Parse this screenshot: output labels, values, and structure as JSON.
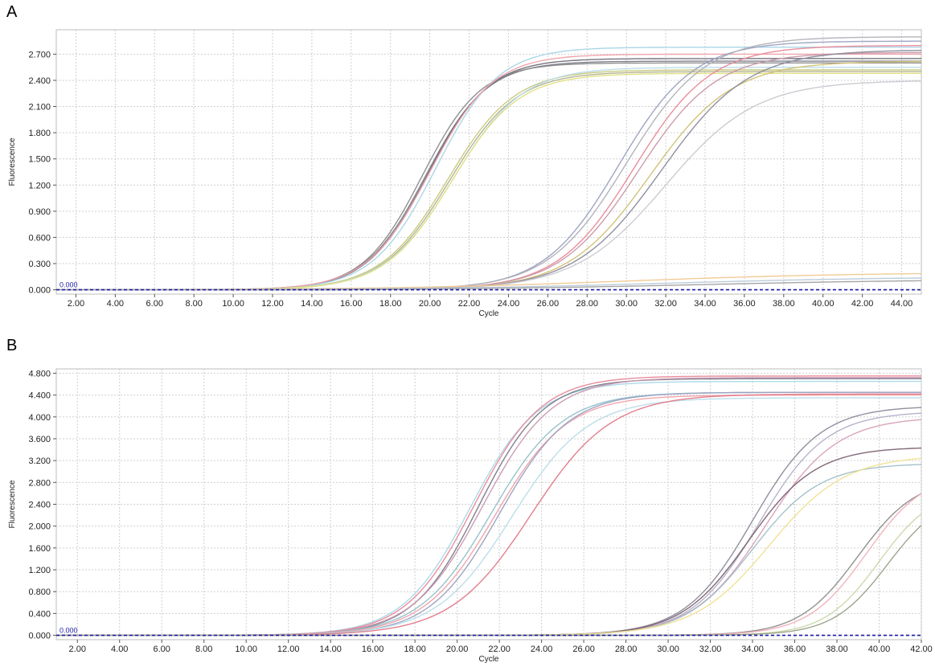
{
  "chart_data": [
    {
      "id": "A",
      "panel_label": "A",
      "type": "line",
      "xlabel": "Cycle",
      "ylabel": "Fluorescence",
      "xlim": [
        1,
        45
      ],
      "ylim": [
        -0.05,
        2.98
      ],
      "xticks": [
        "2.00",
        "4.00",
        "6.00",
        "8.00",
        "10.00",
        "12.00",
        "14.00",
        "16.00",
        "18.00",
        "20.00",
        "22.00",
        "24.00",
        "26.00",
        "28.00",
        "30.00",
        "32.00",
        "34.00",
        "36.00",
        "38.00",
        "40.00",
        "42.00",
        "44.00"
      ],
      "yticks": [
        "0.000",
        "0.300",
        "0.600",
        "0.900",
        "1.200",
        "1.500",
        "1.800",
        "2.100",
        "2.400",
        "2.700"
      ],
      "threshold": {
        "value": 0.0,
        "label": "0.000",
        "color": "#1a1aa6"
      },
      "grid": true,
      "legend": "none",
      "series": [
        {
          "color": "#7a7a8a",
          "plateau": 2.62,
          "midpoint": 19.8,
          "slope": 1.55
        },
        {
          "color": "#8a8a8a",
          "plateau": 2.6,
          "midpoint": 19.6,
          "slope": 1.5
        },
        {
          "color": "#6e6e78",
          "plateau": 2.65,
          "midpoint": 19.9,
          "slope": 1.55
        },
        {
          "color": "#a8d4e6",
          "plateau": 2.78,
          "midpoint": 20.3,
          "slope": 1.6
        },
        {
          "color": "#f0a0a8",
          "plateau": 2.7,
          "midpoint": 20.0,
          "slope": 1.6
        },
        {
          "color": "#c8c87a",
          "plateau": 2.52,
          "midpoint": 20.9,
          "slope": 1.7
        },
        {
          "color": "#b0b090",
          "plateau": 2.5,
          "midpoint": 21.0,
          "slope": 1.7
        },
        {
          "color": "#b8dce8",
          "plateau": 2.55,
          "midpoint": 21.2,
          "slope": 1.75
        },
        {
          "color": "#e0e080",
          "plateau": 2.48,
          "midpoint": 21.1,
          "slope": 1.7
        },
        {
          "color": "#9aa0c0",
          "plateau": 2.85,
          "midpoint": 29.6,
          "slope": 1.9
        },
        {
          "color": "#b0b0b8",
          "plateau": 2.9,
          "midpoint": 30.0,
          "slope": 2.0
        },
        {
          "color": "#e88898",
          "plateau": 2.8,
          "midpoint": 30.4,
          "slope": 1.95
        },
        {
          "color": "#c898a8",
          "plateau": 2.72,
          "midpoint": 30.6,
          "slope": 2.0
        },
        {
          "color": "#d0c070",
          "plateau": 2.62,
          "midpoint": 31.2,
          "slope": 2.1
        },
        {
          "color": "#8a8a9a",
          "plateau": 2.75,
          "midpoint": 31.8,
          "slope": 2.2
        },
        {
          "color": "#c8c8d0",
          "plateau": 2.4,
          "midpoint": 32.0,
          "slope": 2.3
        },
        {
          "color": "#f0c890",
          "plateau": 0.2,
          "midpoint": 30.0,
          "slope": 6.0
        },
        {
          "color": "#b8c8d8",
          "plateau": 0.15,
          "midpoint": 32.0,
          "slope": 6.0
        },
        {
          "color": "#a0a0a0",
          "plateau": 0.12,
          "midpoint": 34.0,
          "slope": 6.0
        }
      ]
    },
    {
      "id": "B",
      "panel_label": "B",
      "type": "line",
      "xlabel": "Cycle",
      "ylabel": "Fluorescence",
      "xlim": [
        1,
        42
      ],
      "ylim": [
        -0.08,
        4.88
      ],
      "xticks": [
        "2.00",
        "4.00",
        "6.00",
        "8.00",
        "10.00",
        "12.00",
        "14.00",
        "16.00",
        "18.00",
        "20.00",
        "22.00",
        "24.00",
        "26.00",
        "28.00",
        "30.00",
        "32.00",
        "34.00",
        "36.00",
        "38.00",
        "40.00",
        "42.00"
      ],
      "yticks": [
        "0.000",
        "0.400",
        "0.800",
        "1.200",
        "1.600",
        "2.000",
        "2.400",
        "2.800",
        "3.200",
        "3.600",
        "4.000",
        "4.400",
        "4.800"
      ],
      "threshold": {
        "value": 0.0,
        "label": "0.000",
        "color": "#1a1aa6"
      },
      "grid": true,
      "legend": "none",
      "series": [
        {
          "color": "#a8d8e8",
          "plateau": 4.65,
          "midpoint": 20.6,
          "slope": 1.6
        },
        {
          "color": "#e88898",
          "plateau": 4.75,
          "midpoint": 20.8,
          "slope": 1.6
        },
        {
          "color": "#7a7a8a",
          "plateau": 4.7,
          "midpoint": 21.0,
          "slope": 1.55
        },
        {
          "color": "#c898b0",
          "plateau": 4.72,
          "midpoint": 21.2,
          "slope": 1.65
        },
        {
          "color": "#90c0c8",
          "plateau": 4.45,
          "midpoint": 21.6,
          "slope": 1.7
        },
        {
          "color": "#f0a0a8",
          "plateau": 4.4,
          "midpoint": 21.8,
          "slope": 1.7
        },
        {
          "color": "#9aa0c0",
          "plateau": 4.45,
          "midpoint": 22.0,
          "slope": 1.65
        },
        {
          "color": "#b8dce8",
          "plateau": 4.35,
          "midpoint": 22.6,
          "slope": 1.8
        },
        {
          "color": "#e07888",
          "plateau": 4.42,
          "midpoint": 23.5,
          "slope": 1.9
        },
        {
          "color": "#8a8a9a",
          "plateau": 4.2,
          "midpoint": 34.0,
          "slope": 1.6
        },
        {
          "color": "#b0b0c8",
          "plateau": 4.1,
          "midpoint": 34.3,
          "slope": 1.6
        },
        {
          "color": "#d8a0b8",
          "plateau": 4.0,
          "midpoint": 34.6,
          "slope": 1.7
        },
        {
          "color": "#7a6070",
          "plateau": 3.45,
          "midpoint": 33.8,
          "slope": 1.6
        },
        {
          "color": "#a0c0c8",
          "plateau": 3.15,
          "midpoint": 34.0,
          "slope": 1.6
        },
        {
          "color": "#f0e090",
          "plateau": 3.3,
          "midpoint": 34.8,
          "slope": 1.8
        },
        {
          "color": "#8a8a8a",
          "plateau": 2.9,
          "midpoint": 39.0,
          "slope": 1.4
        },
        {
          "color": "#f0b0b8",
          "plateau": 3.0,
          "midpoint": 39.4,
          "slope": 1.4
        },
        {
          "color": "#c8d8a8",
          "plateau": 2.7,
          "midpoint": 40.0,
          "slope": 1.3
        },
        {
          "color": "#9aa088",
          "plateau": 2.6,
          "midpoint": 40.4,
          "slope": 1.3
        }
      ]
    }
  ]
}
